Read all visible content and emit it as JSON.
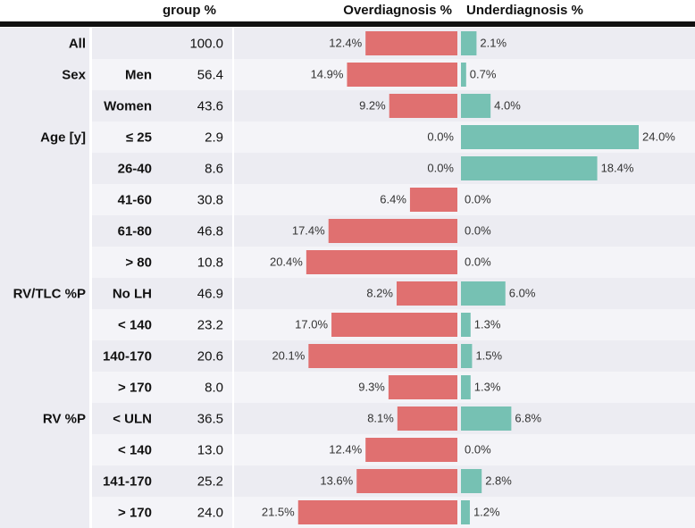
{
  "chart_data": {
    "type": "bar",
    "headers": {
      "group": "group %",
      "over": "Overdiagnosis %",
      "under": "Underdiagnosis %"
    },
    "colors": {
      "over": "#e07070",
      "under": "#76c1b3",
      "band_dark": "#ececf2",
      "band_light": "#f4f4f8",
      "header_rule": "#111111"
    },
    "rows": [
      {
        "group": "",
        "sub": "All",
        "pct": "100.0",
        "over": 12.4,
        "under": 2.1,
        "over_label": "12.4%",
        "under_label": "2.1%"
      },
      {
        "group": "Sex",
        "sub": "Men",
        "pct": "56.4",
        "over": 14.9,
        "under": 0.7,
        "over_label": "14.9%",
        "under_label": "0.7%"
      },
      {
        "group": "",
        "sub": "Women",
        "pct": "43.6",
        "over": 9.2,
        "under": 4.0,
        "over_label": "9.2%",
        "under_label": "4.0%"
      },
      {
        "group": "Age [y]",
        "sub": "≤ 25",
        "pct": "2.9",
        "over": 0.0,
        "under": 24.0,
        "over_label": "0.0%",
        "under_label": "24.0%"
      },
      {
        "group": "",
        "sub": "26-40",
        "pct": "8.6",
        "over": 0.0,
        "under": 18.4,
        "over_label": "0.0%",
        "under_label": "18.4%"
      },
      {
        "group": "",
        "sub": "41-60",
        "pct": "30.8",
        "over": 6.4,
        "under": 0.0,
        "over_label": "6.4%",
        "under_label": "0.0%"
      },
      {
        "group": "",
        "sub": "61-80",
        "pct": "46.8",
        "over": 17.4,
        "under": 0.0,
        "over_label": "17.4%",
        "under_label": "0.0%"
      },
      {
        "group": "",
        "sub": "> 80",
        "pct": "10.8",
        "over": 20.4,
        "under": 0.0,
        "over_label": "20.4%",
        "under_label": "0.0%"
      },
      {
        "group": "RV/TLC %P",
        "sub": "No LH",
        "pct": "46.9",
        "over": 8.2,
        "under": 6.0,
        "over_label": "8.2%",
        "under_label": "6.0%"
      },
      {
        "group": "",
        "sub": "< 140",
        "pct": "23.2",
        "over": 17.0,
        "under": 1.3,
        "over_label": "17.0%",
        "under_label": "1.3%"
      },
      {
        "group": "",
        "sub": "140-170",
        "pct": "20.6",
        "over": 20.1,
        "under": 1.5,
        "over_label": "20.1%",
        "under_label": "1.5%"
      },
      {
        "group": "",
        "sub": "> 170",
        "pct": "8.0",
        "over": 9.3,
        "under": 1.3,
        "over_label": "9.3%",
        "under_label": "1.3%"
      },
      {
        "group": "RV %P",
        "sub": "< ULN",
        "pct": "36.5",
        "over": 8.1,
        "under": 6.8,
        "over_label": "8.1%",
        "under_label": "6.8%"
      },
      {
        "group": "",
        "sub": "< 140",
        "pct": "13.0",
        "over": 12.4,
        "under": 0.0,
        "over_label": "12.4%",
        "under_label": "0.0%"
      },
      {
        "group": "",
        "sub": "141-170",
        "pct": "25.2",
        "over": 13.6,
        "under": 2.8,
        "over_label": "13.6%",
        "under_label": "2.8%"
      },
      {
        "group": "",
        "sub": "> 170",
        "pct": "24.0",
        "over": 21.5,
        "under": 1.2,
        "over_label": "21.5%",
        "under_label": "1.2%"
      }
    ],
    "xlim": [
      0,
      24.0
    ]
  }
}
